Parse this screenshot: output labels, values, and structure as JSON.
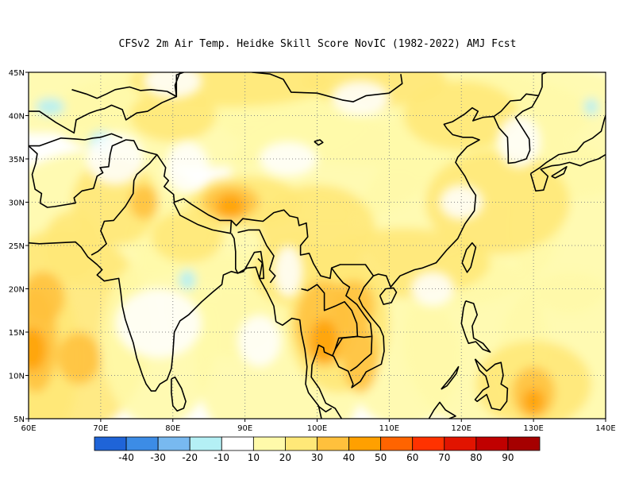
{
  "title": "CFSv2  2m Air Temp. Heidke Skill Score NovIC (1982-2022) AMJ Fcst",
  "map": {
    "lon_range": [
      60,
      140
    ],
    "lat_range": [
      5,
      45
    ],
    "lon_ticks": [
      "60E",
      "70E",
      "80E",
      "90E",
      "100E",
      "110E",
      "120E",
      "130E",
      "140E"
    ],
    "lat_ticks": [
      "5N",
      "10N",
      "15N",
      "20N",
      "25N",
      "30N",
      "35N",
      "40N",
      "45N"
    ],
    "grid": "dotted",
    "field": "2m air temperature Heidke skill score"
  },
  "colorbar": {
    "colors": [
      "#1f64d8",
      "#3c8ce6",
      "#78b9f0",
      "#b4f0f5",
      "#ffffff",
      "#fffaaa",
      "#ffe878",
      "#ffc03c",
      "#ffa000",
      "#ff6400",
      "#ff3200",
      "#e11400",
      "#c00000",
      "#a50000"
    ],
    "labels": [
      "-40",
      "-30",
      "-20",
      "-10",
      "10",
      "20",
      "30",
      "40",
      "50",
      "60",
      "70",
      "80",
      "90"
    ]
  },
  "colors": {
    "coastline": "#000000",
    "grid": "#888888"
  }
}
